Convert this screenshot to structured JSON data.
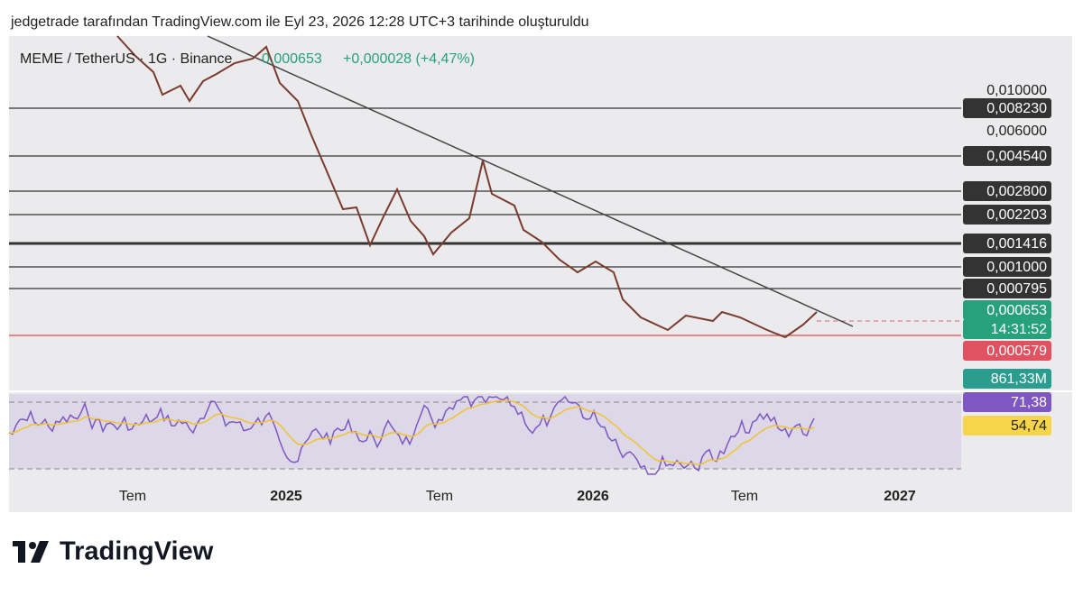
{
  "header": {
    "caption": "jedgetrade tarafından TradingView.com ile Eyl 23, 2026 12:28 UTC+3 tarihinde oluşturuldu"
  },
  "symbol": {
    "name": "MEME / TetherUS · 1G · Binance",
    "price": "0,000653",
    "change": "+0,000028 (+4,47%)"
  },
  "price_scale": {
    "plain": [
      "0,010000",
      "0,006000"
    ],
    "levels": [
      "0,008230",
      "0,004540",
      "0,002800",
      "0,002203",
      "0,001416",
      "0,001000",
      "0,000795"
    ]
  },
  "badges": {
    "last_price": "0,000653",
    "countdown": "14:31:52",
    "support": "0,000579",
    "volume": "861,33M"
  },
  "rsi": {
    "value": "71,38",
    "ma": "54,74"
  },
  "time_axis": [
    "Tem",
    "2025",
    "Tem",
    "2026",
    "Tem",
    "2027"
  ],
  "footer": {
    "logo": "TradingView"
  }
}
